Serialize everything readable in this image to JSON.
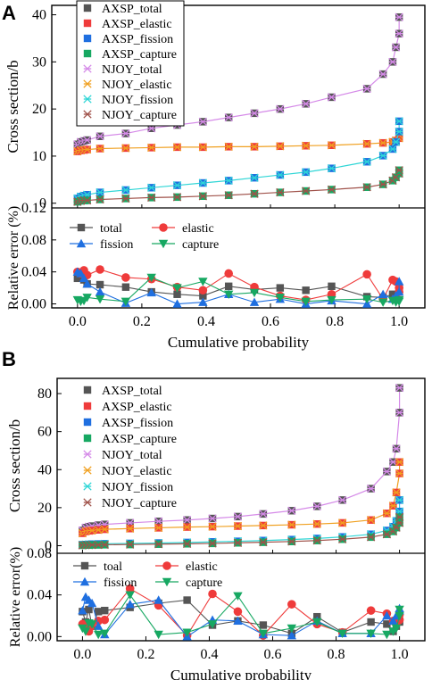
{
  "colors": {
    "total": "#555555",
    "elastic": "#ef3b3b",
    "fission": "#1f6fe0",
    "capture": "#17a862",
    "njoy_total": "#d58ae8",
    "njoy_elastic": "#f0a020",
    "njoy_fission": "#2fd6d6",
    "njoy_capture": "#a0524a"
  },
  "chart_data": [
    {
      "panel": "A",
      "type": "line",
      "ylabel": "Cross section/b",
      "xlim": [
        -0.08,
        1.08
      ],
      "ylim": [
        -1,
        42
      ],
      "yticks": [
        0,
        10,
        20,
        30,
        40
      ],
      "xticks": [
        "0.0",
        "0.2",
        "0.4",
        "0.6",
        "0.8",
        "1.0"
      ],
      "legend_position": "top-left",
      "legend": [
        "AXSP_total",
        "AXSP_elastic",
        "AXSP_fission",
        "AXSP_capture",
        "NJOY_total",
        "NJOY_elastic",
        "NJOY_fission",
        "NJOY_capture"
      ],
      "x": [
        0.0,
        0.01,
        0.02,
        0.03,
        0.07,
        0.15,
        0.23,
        0.31,
        0.39,
        0.47,
        0.55,
        0.63,
        0.71,
        0.79,
        0.9,
        0.95,
        0.98,
        0.99,
        1.0,
        1.0
      ],
      "series": [
        {
          "name": "total",
          "values": [
            12.5,
            13.0,
            13.2,
            13.4,
            14.2,
            14.8,
            15.9,
            16.6,
            17.3,
            18.2,
            19.1,
            20.0,
            21.1,
            22.5,
            24.3,
            27.4,
            30.0,
            33.1,
            36.0,
            39.5
          ]
        },
        {
          "name": "elastic",
          "values": [
            11.0,
            11.2,
            11.3,
            11.4,
            11.6,
            11.7,
            11.8,
            11.9,
            11.9,
            12.0,
            12.0,
            12.1,
            12.2,
            12.3,
            12.6,
            12.8,
            13.0,
            13.3,
            13.8,
            14.5
          ]
        },
        {
          "name": "fission",
          "values": [
            1.0,
            1.4,
            1.6,
            1.8,
            2.3,
            2.8,
            3.3,
            3.8,
            4.3,
            4.8,
            5.4,
            6.0,
            6.6,
            7.4,
            8.8,
            10.1,
            11.5,
            13.0,
            15.2,
            17.4
          ]
        },
        {
          "name": "capture",
          "values": [
            0.3,
            0.5,
            0.6,
            0.6,
            0.8,
            1.0,
            1.2,
            1.3,
            1.5,
            1.7,
            2.0,
            2.3,
            2.6,
            2.9,
            3.4,
            4.0,
            4.8,
            5.5,
            6.3,
            7.0
          ]
        }
      ],
      "error": {
        "ylabel": "Relative error (%)",
        "xlabel": "Cumulative probability",
        "ylim": [
          -0.005,
          0.12
        ],
        "yticks": [
          "0.00",
          "0.04",
          "0.08",
          "0.12"
        ],
        "legend": [
          "total",
          "elastic",
          "fission",
          "capture"
        ],
        "series": [
          {
            "name": "total",
            "values": [
              0.032,
              0.035,
              0.03,
              0.025,
              0.024,
              0.021,
              0.015,
              0.012,
              0.01,
              0.022,
              0.018,
              0.02,
              0.017,
              0.022,
              0.009,
              0.008,
              0.012,
              0.01,
              0.02,
              0.015
            ]
          },
          {
            "name": "elastic",
            "values": [
              0.04,
              0.038,
              0.042,
              0.036,
              0.043,
              0.033,
              0.031,
              0.021,
              0.017,
              0.038,
              0.021,
              0.01,
              0.005,
              0.012,
              0.037,
              0.006,
              0.03,
              0.028,
              0.015,
              0.02
            ]
          },
          {
            "name": "fission",
            "values": [
              0.04,
              0.038,
              0.032,
              0.025,
              0.015,
              0.001,
              0.014,
              0.0,
              0.002,
              0.012,
              0.002,
              0.006,
              0.0,
              0.004,
              0.0,
              0.012,
              0.006,
              0.01,
              0.015,
              0.028
            ]
          },
          {
            "name": "capture",
            "values": [
              0.005,
              0.003,
              0.004,
              0.008,
              0.006,
              0.003,
              0.033,
              0.02,
              0.028,
              0.012,
              0.014,
              0.008,
              0.003,
              0.005,
              0.006,
              0.002,
              0.004,
              0.002,
              0.003,
              0.005
            ]
          }
        ]
      }
    },
    {
      "panel": "B",
      "type": "line",
      "ylabel": "Cross section/b",
      "xlim": [
        -0.08,
        1.08
      ],
      "ylim": [
        -4,
        88
      ],
      "yticks": [
        0,
        20,
        40,
        60,
        80
      ],
      "xticks": [
        "0.0",
        "0.2",
        "0.4",
        "0.6",
        "0.8",
        "1.0"
      ],
      "legend_position": "left",
      "legend": [
        "AXSP_total",
        "AXSP_elastic",
        "AXSP_fission",
        "AXSP_capture",
        "NJOY_total",
        "NJOY_elastic",
        "NJOY_fission",
        "NJOY_capture"
      ],
      "x": [
        0.0,
        0.01,
        0.02,
        0.03,
        0.05,
        0.07,
        0.15,
        0.24,
        0.33,
        0.41,
        0.49,
        0.57,
        0.66,
        0.74,
        0.82,
        0.91,
        0.96,
        0.98,
        0.99,
        1.0,
        1.0
      ],
      "series": [
        {
          "name": "total",
          "values": [
            8.0,
            9.5,
            10.0,
            10.3,
            10.8,
            11.2,
            12.0,
            12.8,
            13.5,
            14.3,
            15.3,
            16.7,
            18.4,
            20.7,
            24.0,
            30.0,
            39.0,
            44.0,
            51.0,
            70.0,
            83.0
          ]
        },
        {
          "name": "elastic",
          "values": [
            6.5,
            7.5,
            7.8,
            8.0,
            8.3,
            8.6,
            9.0,
            9.4,
            9.8,
            10.0,
            10.3,
            10.6,
            11.0,
            11.4,
            12.0,
            13.5,
            17.0,
            21.0,
            28.0,
            38.0,
            44.0
          ]
        },
        {
          "name": "fission",
          "values": [
            0.5,
            0.6,
            0.7,
            0.8,
            0.9,
            1.0,
            1.2,
            1.4,
            1.7,
            2.0,
            2.3,
            2.7,
            3.2,
            3.8,
            4.6,
            6.0,
            8.0,
            10.0,
            13.0,
            18.0,
            24.0
          ]
        },
        {
          "name": "capture",
          "values": [
            0.2,
            0.3,
            0.3,
            0.4,
            0.4,
            0.5,
            0.6,
            0.8,
            1.0,
            1.2,
            1.5,
            1.8,
            2.2,
            2.7,
            3.4,
            4.5,
            6.0,
            7.5,
            9.5,
            12.0,
            15.0
          ]
        }
      ],
      "error": {
        "ylabel": "Relative error(%)",
        "xlabel": "Cumulative probability",
        "ylim": [
          -0.004,
          0.08
        ],
        "yticks": [
          "0.00",
          "0.04",
          "0.08"
        ],
        "legend": [
          "toal",
          "elastic",
          "fission",
          "capture"
        ],
        "series": [
          {
            "name": "toal",
            "values": [
              0.024,
              0.014,
              0.026,
              0.01,
              0.024,
              0.025,
              0.028,
              0.032,
              0.035,
              0.011,
              0.015,
              0.011,
              0.003,
              0.019,
              0.004,
              0.014,
              0.012,
              0.005,
              0.01,
              0.014,
              0.015
            ]
          },
          {
            "name": "elastic",
            "values": [
              0.012,
              0.009,
              0.005,
              0.01,
              0.015,
              0.016,
              0.046,
              0.03,
              0.001,
              0.041,
              0.024,
              0.001,
              0.031,
              0.012,
              0.004,
              0.025,
              0.022,
              0.015,
              0.012,
              0.021,
              0.016
            ]
          },
          {
            "name": "fission",
            "values": [
              0.025,
              0.038,
              0.035,
              0.032,
              0.01,
              0.002,
              0.031,
              0.035,
              0.0,
              0.016,
              0.015,
              0.002,
              0.001,
              0.015,
              0.003,
              0.003,
              0.02,
              0.015,
              0.02,
              0.025,
              0.027
            ]
          },
          {
            "name": "capture",
            "values": [
              0.008,
              0.005,
              0.013,
              0.012,
              0.002,
              0.003,
              0.04,
              0.002,
              0.004,
              0.012,
              0.039,
              0.003,
              0.008,
              0.014,
              0.003,
              0.003,
              0.002,
              0.005,
              0.008,
              0.02,
              0.026
            ]
          }
        ]
      }
    }
  ],
  "panel_letters": [
    "A",
    "B"
  ]
}
